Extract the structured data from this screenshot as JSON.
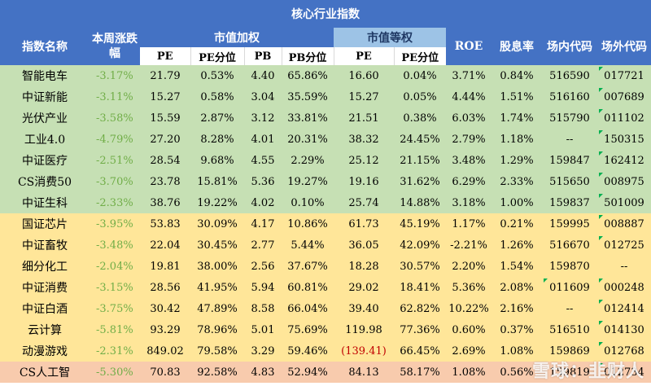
{
  "title": "核心行业指数",
  "headers": {
    "name": "指数名称",
    "change": "本周涨跌幅",
    "group_weighted": "市值加权",
    "group_equal": "市值等权",
    "roe": "ROE",
    "dividend": "股息率",
    "onshore": "场内代码",
    "offshore": "场外代码",
    "sub": [
      "PE",
      "PE分位",
      "PB",
      "PB分位",
      "PE",
      "PE分位"
    ]
  },
  "rows": [
    {
      "group": "green",
      "name": "智能电车",
      "change": "-3.17%",
      "pe": "21.79",
      "pe_pct": "0.53%",
      "pb": "4.40",
      "pb_pct": "65.86%",
      "pe_eq": "16.60",
      "pe_eq_pct": "0.04%",
      "roe": "3.71%",
      "dividend": "0.84%",
      "onshore": "516590",
      "offshore": "017721"
    },
    {
      "group": "green",
      "name": "中证新能",
      "change": "-3.11%",
      "pe": "15.27",
      "pe_pct": "0.58%",
      "pb": "3.04",
      "pb_pct": "35.59%",
      "pe_eq": "15.27",
      "pe_eq_pct": "0.05%",
      "roe": "4.44%",
      "dividend": "1.51%",
      "onshore": "516160",
      "offshore": "007689"
    },
    {
      "group": "green",
      "name": "光伏产业",
      "change": "-3.58%",
      "pe": "15.59",
      "pe_pct": "2.87%",
      "pb": "3.12",
      "pb_pct": "33.81%",
      "pe_eq": "21.51",
      "pe_eq_pct": "0.38%",
      "roe": "6.03%",
      "dividend": "1.74%",
      "onshore": "515790",
      "offshore": "011102"
    },
    {
      "group": "green",
      "name": "工业4.0",
      "change": "-4.79%",
      "pe": "27.20",
      "pe_pct": "8.28%",
      "pb": "4.01",
      "pb_pct": "20.31%",
      "pe_eq": "38.32",
      "pe_eq_pct": "24.45%",
      "roe": "2.79%",
      "dividend": "1.18%",
      "onshore": "--",
      "offshore": "150315"
    },
    {
      "group": "green",
      "name": "中证医疗",
      "change": "-2.51%",
      "pe": "28.54",
      "pe_pct": "9.68%",
      "pb": "4.55",
      "pb_pct": "2.29%",
      "pe_eq": "25.12",
      "pe_eq_pct": "21.15%",
      "roe": "3.48%",
      "dividend": "1.29%",
      "onshore": "159847",
      "offshore": "162412"
    },
    {
      "group": "green",
      "name": "CS消费50",
      "change": "-3.70%",
      "pe": "23.78",
      "pe_pct": "15.81%",
      "pb": "5.36",
      "pb_pct": "19.27%",
      "pe_eq": "19.16",
      "pe_eq_pct": "31.62%",
      "roe": "6.29%",
      "dividend": "2.33%",
      "onshore": "515650",
      "offshore": "008975"
    },
    {
      "group": "green",
      "name": "中证生科",
      "change": "-2.33%",
      "pe": "38.76",
      "pe_pct": "19.22%",
      "pb": "4.02",
      "pb_pct": "0.10%",
      "pe_eq": "25.74",
      "pe_eq_pct": "14.88%",
      "roe": "3.18%",
      "dividend": "1.00%",
      "onshore": "159837",
      "offshore": "501009"
    },
    {
      "group": "yellow",
      "name": "国证芯片",
      "change": "-3.95%",
      "pe": "53.83",
      "pe_pct": "30.09%",
      "pb": "4.17",
      "pb_pct": "10.86%",
      "pe_eq": "61.73",
      "pe_eq_pct": "45.19%",
      "roe": "1.17%",
      "dividend": "0.21%",
      "onshore": "159995",
      "offshore": "008887"
    },
    {
      "group": "yellow",
      "name": "中证畜牧",
      "change": "-3.48%",
      "pe": "22.04",
      "pe_pct": "30.45%",
      "pb": "2.77",
      "pb_pct": "5.44%",
      "pe_eq": "36.05",
      "pe_eq_pct": "42.09%",
      "roe": "-2.21%",
      "dividend": "1.26%",
      "onshore": "516670",
      "offshore": "012725"
    },
    {
      "group": "yellow",
      "name": "细分化工",
      "change": "-2.04%",
      "pe": "19.81",
      "pe_pct": "38.00%",
      "pb": "2.56",
      "pb_pct": "37.67%",
      "pe_eq": "18.28",
      "pe_eq_pct": "30.57%",
      "roe": "2.20%",
      "dividend": "1.54%",
      "onshore": "159870",
      "offshore": "--"
    },
    {
      "group": "yellow",
      "name": "中证消费",
      "change": "-3.15%",
      "pe": "28.56",
      "pe_pct": "41.95%",
      "pb": "5.94",
      "pb_pct": "60.81%",
      "pe_eq": "29.02",
      "pe_eq_pct": "18.41%",
      "roe": "5.36%",
      "dividend": "2.08%",
      "onshore": "011609",
      "offshore": "000248"
    },
    {
      "group": "yellow",
      "name": "中证白酒",
      "change": "-3.75%",
      "pe": "30.42",
      "pe_pct": "47.89%",
      "pb": "8.58",
      "pb_pct": "66.04%",
      "pe_eq": "39.40",
      "pe_eq_pct": "62.82%",
      "roe": "10.22%",
      "dividend": "2.16%",
      "onshore": "--",
      "offshore": "012414"
    },
    {
      "group": "yellow",
      "name": "云计算",
      "change": "-5.81%",
      "pe": "93.29",
      "pe_pct": "78.96%",
      "pb": "5.01",
      "pb_pct": "75.69%",
      "pe_eq": "119.98",
      "pe_eq_pct": "77.36%",
      "roe": "0.60%",
      "dividend": "0.37%",
      "onshore": "516510",
      "offshore": "014130"
    },
    {
      "group": "yellow",
      "name": "动漫游戏",
      "change": "-2.31%",
      "pe": "849.02",
      "pe_pct": "79.58%",
      "pb": "3.29",
      "pb_pct": "59.46%",
      "pe_eq": "(139.41)",
      "pe_eq_pct": "66.45%",
      "roe": "2.69%",
      "dividend": "1.08%",
      "onshore": "159869",
      "offshore": "012768"
    },
    {
      "group": "red",
      "name": "CS人工智",
      "change": "-5.30%",
      "pe": "70.83",
      "pe_pct": "92.58%",
      "pb": "4.83",
      "pb_pct": "52.94%",
      "pe_eq": "84.13",
      "pe_eq_pct": "58.17%",
      "roe": "1.08%",
      "dividend": "0.56%",
      "onshore": "159819",
      "offshore": "012734"
    }
  ],
  "watermark": "雪球：韭财人"
}
